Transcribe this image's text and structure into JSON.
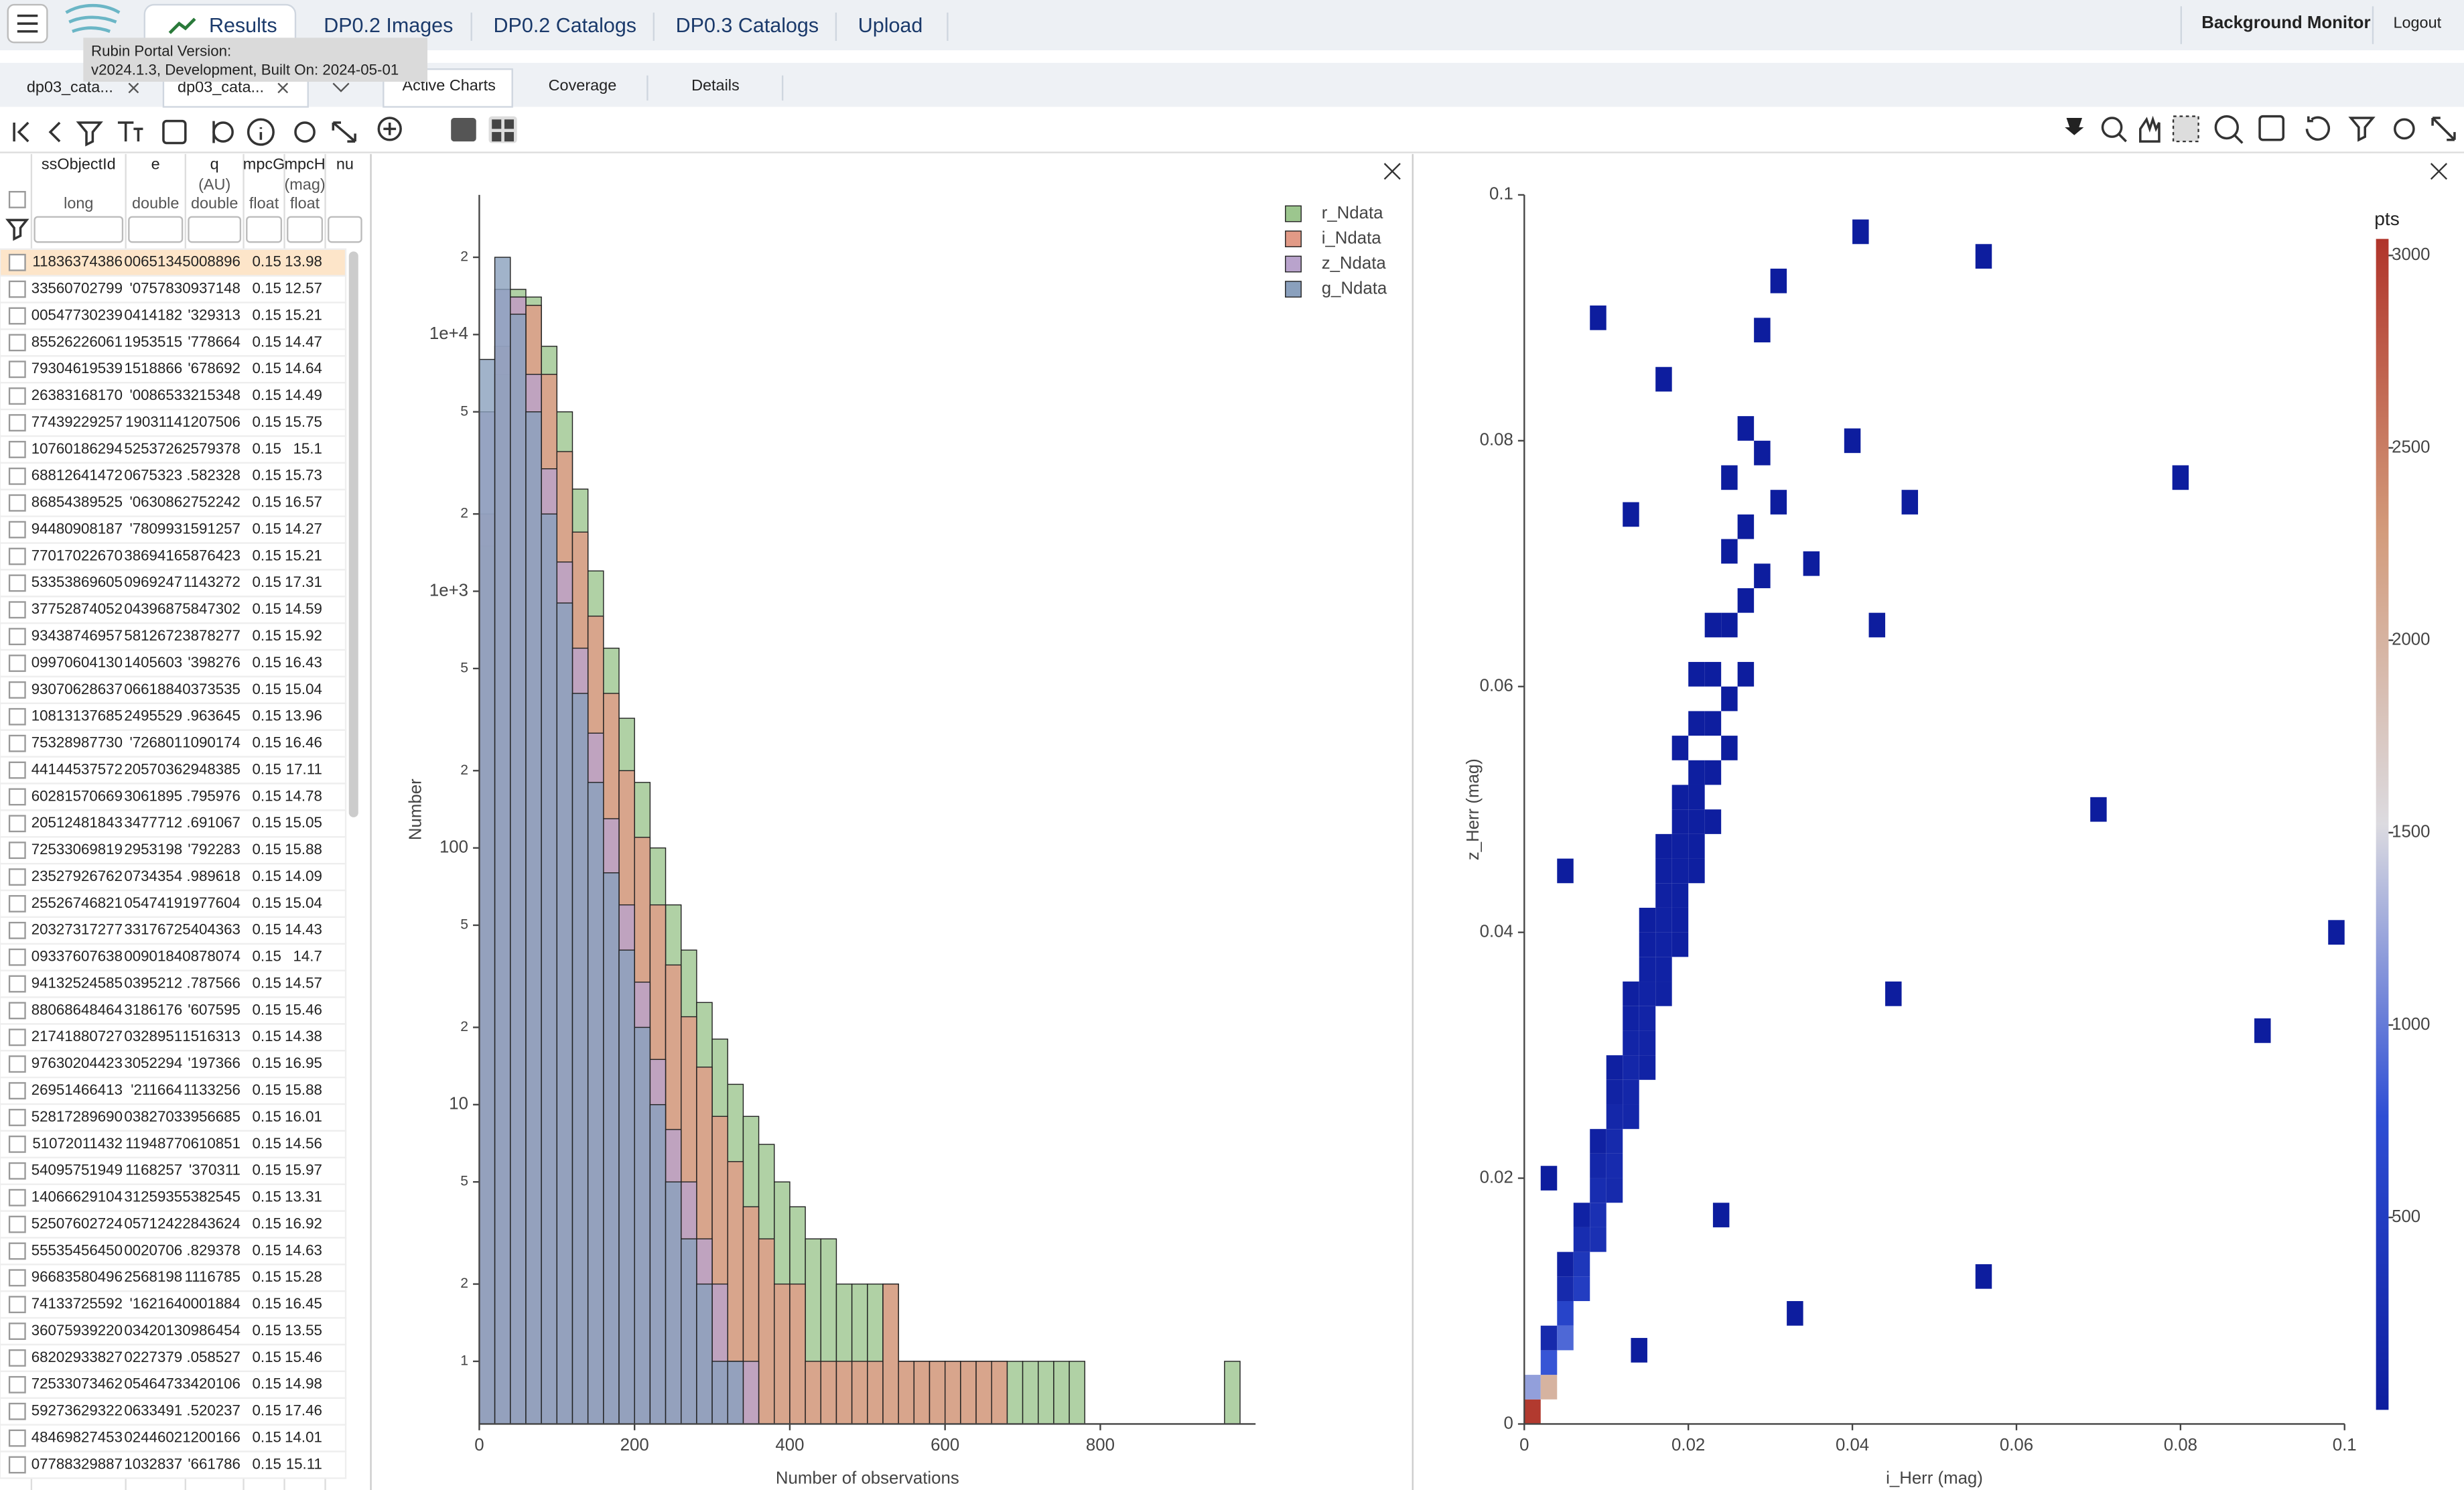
{
  "header": {
    "tabs": [
      "Results",
      "DP0.2 Images",
      "DP0.2 Catalogs",
      "DP0.3 Catalogs",
      "Upload"
    ],
    "right_links": [
      "Background Monitor",
      "Logout"
    ]
  },
  "tooltip": {
    "lines": [
      "Rubin Portal Version:",
      "v2024.1.3, Development, Built On: 2024-05-01"
    ]
  },
  "table_tabs": [
    "dp03_cata...",
    "dp03_cata..."
  ],
  "chart_tabs": [
    "Active Charts",
    "Coverage",
    "Details"
  ],
  "table": {
    "columns": [
      {
        "name": "ssObjectId",
        "type": "long"
      },
      {
        "name": "e",
        "type": "double"
      },
      {
        "name": "q",
        "unit": "(AU)",
        "type": "double"
      },
      {
        "name": "mpcG",
        "type": "float"
      },
      {
        "name": "mpcH",
        "unit": "(mag)",
        "type": "float"
      },
      {
        "name": "nu"
      }
    ],
    "rows": [
      [
        "11836374386",
        "0065134",
        "5008896",
        "0.15",
        "13.98"
      ],
      [
        "33560702799",
        "'075783",
        "0937148",
        "0.15",
        "12.57"
      ],
      [
        "00547730239",
        "0414182",
        "'329313",
        "0.15",
        "15.21"
      ],
      [
        "85526226061",
        "1953515",
        "'778664",
        "0.15",
        "14.47"
      ],
      [
        "79304619539",
        "1518866",
        "'678692",
        "0.15",
        "14.64"
      ],
      [
        "26383168170",
        "'008653",
        "3215348",
        "0.15",
        "14.49"
      ],
      [
        "77439229257",
        "1903114",
        "1207506",
        "0.15",
        "15.75"
      ],
      [
        "10760186294",
        "5253726",
        "2579378",
        "0.15",
        "15.1"
      ],
      [
        "68812641472",
        "0675323",
        ".582328",
        "0.15",
        "15.73"
      ],
      [
        "86854389525",
        "'063086",
        "2752242",
        "0.15",
        "16.57"
      ],
      [
        "94480908187",
        "'780993",
        "1591257",
        "0.15",
        "14.27"
      ],
      [
        "77017022670",
        "3869416",
        "5876423",
        "0.15",
        "15.21"
      ],
      [
        "53353869605",
        "0969247",
        "1143272",
        "0.15",
        "17.31"
      ],
      [
        "37752874052",
        "0439687",
        "5847302",
        "0.15",
        "14.59"
      ],
      [
        "93438746957",
        "5812672",
        "3878277",
        "0.15",
        "15.92"
      ],
      [
        "09970604130",
        "1405603",
        "'398276",
        "0.15",
        "16.43"
      ],
      [
        "93070628637",
        "0661884",
        "0373535",
        "0.15",
        "15.04"
      ],
      [
        "10813137685",
        "2495529",
        ".963645",
        "0.15",
        "13.96"
      ],
      [
        "75328987730",
        "'726801",
        "1090174",
        "0.15",
        "16.46"
      ],
      [
        "44144537572",
        "2057036",
        "2948385",
        "0.15",
        "17.11"
      ],
      [
        "60281570669",
        "3061895",
        ".795976",
        "0.15",
        "14.78"
      ],
      [
        "20512481843",
        "3477712",
        ".691067",
        "0.15",
        "15.05"
      ],
      [
        "72533069819",
        "2953198",
        "'792283",
        "0.15",
        "15.88"
      ],
      [
        "23527926762",
        "0734354",
        ".989618",
        "0.15",
        "14.09"
      ],
      [
        "25526746821",
        "0547419",
        "1977604",
        "0.15",
        "15.04"
      ],
      [
        "20327317277",
        "3317672",
        "5404363",
        "0.15",
        "14.43"
      ],
      [
        "09337607638",
        "0090184",
        "0878074",
        "0.15",
        "14.7"
      ],
      [
        "94132524585",
        "0395212",
        ".787566",
        "0.15",
        "14.57"
      ],
      [
        "88068648464",
        "3186176",
        "'607595",
        "0.15",
        "15.46"
      ],
      [
        "21741880727",
        "0328951",
        "1516313",
        "0.15",
        "14.38"
      ],
      [
        "97630204423",
        "3052294",
        "'197366",
        "0.15",
        "16.95"
      ],
      [
        "26951466413",
        "'211664",
        "1133256",
        "0.15",
        "15.88"
      ],
      [
        "52817289690",
        "0382703",
        "3956685",
        "0.15",
        "16.01"
      ],
      [
        "51072011432",
        "1194877",
        "0610851",
        "0.15",
        "14.56"
      ],
      [
        "54095751949",
        "1168257",
        "'370311",
        "0.15",
        "15.97"
      ],
      [
        "14066629104",
        "3125935",
        "5382545",
        "0.15",
        "13.31"
      ],
      [
        "52507602724",
        "0571242",
        "2843624",
        "0.15",
        "16.92"
      ],
      [
        "55535456450",
        "0020706",
        ".829378",
        "0.15",
        "14.63"
      ],
      [
        "96683580496",
        "2568198",
        "1116785",
        "0.15",
        "15.28"
      ],
      [
        "74133725592",
        "'162164",
        "0001884",
        "0.15",
        "16.45"
      ],
      [
        "36075939220",
        "0342013",
        "0986454",
        "0.15",
        "13.55"
      ],
      [
        "68202933827",
        "0227379",
        ".058527",
        "0.15",
        "15.46"
      ],
      [
        "72533073462",
        "0546473",
        "3420106",
        "0.15",
        "14.98"
      ],
      [
        "59273629322",
        "0633491",
        ".520237",
        "0.15",
        "17.46"
      ],
      [
        "48469827453",
        "0244602",
        "1200166",
        "0.15",
        "14.01"
      ],
      [
        "07788329887",
        "1032837",
        "'661786",
        "0.15",
        "15.11"
      ]
    ]
  },
  "chart_data": [
    {
      "type": "histogram",
      "xlabel": "Number of observations",
      "ylabel": "Number",
      "log_y": true,
      "legend": "upper right",
      "bins": [
        0,
        20,
        40,
        60,
        80,
        100,
        120,
        140,
        160,
        180,
        200,
        220,
        240,
        260,
        280,
        300,
        320,
        340,
        360,
        380,
        400,
        420,
        440,
        460,
        480,
        500,
        520,
        540,
        560,
        580,
        600,
        620,
        640,
        660,
        680,
        700,
        720,
        740,
        760,
        780,
        800,
        820,
        840,
        860,
        880,
        900,
        920,
        940,
        960,
        980,
        1000
      ],
      "xlim": [
        0,
        1000
      ],
      "xticks": [
        0,
        200,
        400,
        600,
        800
      ],
      "ylim": [
        0.57,
        35000
      ],
      "yticks": [
        1,
        2,
        5,
        10,
        {
          "value": 20,
          "label": "2"
        },
        {
          "value": 50,
          "label": "5"
        },
        100,
        {
          "value": 200,
          "label": "2"
        },
        {
          "value": 500,
          "label": "5"
        },
        {
          "value": 1000,
          "label": "1e+3"
        },
        {
          "value": 2000,
          "label": "2"
        },
        {
          "value": 5000,
          "label": "5"
        },
        {
          "value": 10000,
          "label": "1e+4"
        },
        {
          "value": 20000,
          "label": "2"
        }
      ],
      "series": [
        {
          "name": "r_Ndata",
          "color": "#9cc68e",
          "values": [
            1500,
            7000,
            15000,
            14000,
            9000,
            5000,
            2500,
            1200,
            600,
            320,
            180,
            100,
            60,
            40,
            25,
            18,
            12,
            9,
            7,
            5,
            4,
            3,
            3,
            2,
            2,
            2,
            2,
            1,
            1,
            1,
            1,
            1,
            1,
            1,
            1,
            1,
            1,
            1,
            1,
            0,
            0,
            0,
            0,
            0,
            0,
            0,
            0,
            0,
            1,
            0
          ]
        },
        {
          "name": "i_Ndata",
          "color": "#e29a86",
          "values": [
            2000,
            9000,
            14000,
            13000,
            7000,
            3500,
            1700,
            800,
            400,
            200,
            110,
            60,
            35,
            22,
            14,
            9,
            6,
            4,
            3,
            2,
            2,
            1,
            1,
            1,
            1,
            1,
            2,
            1,
            1,
            1,
            1,
            1,
            1,
            1,
            0,
            0,
            0,
            0,
            0,
            0,
            0,
            0,
            0,
            0,
            0,
            0,
            0,
            0,
            0,
            0
          ]
        },
        {
          "name": "z_Ndata",
          "color": "#b9a3cc",
          "values": [
            5000,
            15000,
            14000,
            7000,
            3000,
            1300,
            600,
            280,
            130,
            60,
            30,
            15,
            8,
            5,
            3,
            2,
            1,
            1,
            0,
            0,
            0,
            0,
            0,
            0,
            0,
            0,
            0,
            0,
            0,
            0,
            0,
            0,
            0,
            0,
            0,
            0,
            0,
            0,
            0,
            0,
            0,
            0,
            0,
            0,
            0,
            0,
            0,
            0,
            0,
            0
          ]
        },
        {
          "name": "g_Ndata",
          "color": "#8aa0bd",
          "values": [
            8000,
            20000,
            12000,
            5000,
            2000,
            900,
            400,
            180,
            80,
            40,
            20,
            10,
            5,
            3,
            2,
            1,
            1,
            0,
            0,
            0,
            0,
            0,
            0,
            0,
            0,
            0,
            0,
            0,
            0,
            0,
            0,
            0,
            0,
            0,
            0,
            0,
            0,
            0,
            0,
            0,
            0,
            0,
            0,
            0,
            0,
            0,
            0,
            0,
            0,
            0
          ]
        }
      ]
    },
    {
      "type": "heatmap",
      "xlabel": "i_Herr (mag)",
      "ylabel": "z_Herr (mag)",
      "xlim": [
        0,
        0.1
      ],
      "ylim": [
        0,
        0.1
      ],
      "xticks": [
        0,
        0.02,
        0.04,
        0.06,
        0.08,
        0.1
      ],
      "yticks": [
        0,
        0.02,
        0.04,
        0.06,
        0.08,
        0.1
      ],
      "cell_size": 0.002,
      "x": [
        0.001,
        0.001,
        0.003,
        0.003,
        0.003,
        0.005,
        0.005,
        0.005,
        0.005,
        0.007,
        0.007,
        0.007,
        0.007,
        0.009,
        0.009,
        0.009,
        0.009,
        0.009,
        0.011,
        0.011,
        0.011,
        0.011,
        0.011,
        0.011,
        0.013,
        0.013,
        0.013,
        0.013,
        0.013,
        0.013,
        0.015,
        0.015,
        0.015,
        0.015,
        0.015,
        0.015,
        0.015,
        0.017,
        0.017,
        0.017,
        0.017,
        0.017,
        0.017,
        0.017,
        0.019,
        0.019,
        0.019,
        0.019,
        0.019,
        0.019,
        0.019,
        0.019,
        0.021,
        0.021,
        0.021,
        0.021,
        0.021,
        0.021,
        0.021,
        0.023,
        0.023,
        0.023,
        0.023,
        0.023,
        0.025,
        0.025,
        0.025,
        0.025,
        0.025,
        0.027,
        0.027,
        0.027,
        0.027,
        0.029,
        0.029,
        0.029,
        0.031,
        0.031,
        0.017,
        0.013,
        0.009,
        0.005,
        0.035,
        0.043,
        0.047,
        0.04,
        0.056,
        0.07,
        0.08,
        0.099,
        0.09,
        0.045,
        0.056,
        0.033,
        0.024,
        0.014,
        0.003,
        0.041
      ],
      "y": [
        0.001,
        0.003,
        0.003,
        0.005,
        0.007,
        0.007,
        0.009,
        0.011,
        0.013,
        0.011,
        0.013,
        0.015,
        0.017,
        0.015,
        0.017,
        0.019,
        0.021,
        0.023,
        0.019,
        0.021,
        0.023,
        0.025,
        0.027,
        0.029,
        0.025,
        0.027,
        0.029,
        0.031,
        0.033,
        0.035,
        0.029,
        0.031,
        0.033,
        0.035,
        0.037,
        0.039,
        0.041,
        0.035,
        0.037,
        0.039,
        0.041,
        0.043,
        0.045,
        0.047,
        0.039,
        0.041,
        0.043,
        0.045,
        0.047,
        0.049,
        0.051,
        0.055,
        0.045,
        0.047,
        0.049,
        0.051,
        0.053,
        0.057,
        0.061,
        0.049,
        0.053,
        0.057,
        0.061,
        0.065,
        0.055,
        0.059,
        0.065,
        0.071,
        0.077,
        0.061,
        0.067,
        0.073,
        0.081,
        0.069,
        0.079,
        0.089,
        0.075,
        0.093,
        0.085,
        0.074,
        0.09,
        0.045,
        0.07,
        0.065,
        0.075,
        0.08,
        0.095,
        0.05,
        0.077,
        0.04,
        0.032,
        0.035,
        0.012,
        0.009,
        0.017,
        0.006,
        0.02,
        0.097
      ],
      "values": [
        3000,
        1200,
        2000,
        800,
        200,
        900,
        600,
        200,
        60,
        500,
        400,
        250,
        80,
        300,
        300,
        250,
        150,
        60,
        200,
        220,
        200,
        150,
        90,
        40,
        150,
        160,
        150,
        120,
        80,
        40,
        100,
        110,
        110,
        100,
        80,
        50,
        30,
        70,
        80,
        80,
        70,
        60,
        40,
        20,
        40,
        50,
        55,
        50,
        45,
        35,
        25,
        15,
        25,
        30,
        30,
        30,
        25,
        15,
        10,
        12,
        15,
        12,
        8,
        5,
        6,
        6,
        4,
        3,
        2,
        3,
        2,
        2,
        1,
        2,
        1,
        1,
        1,
        1,
        1,
        1,
        1,
        1,
        1,
        1,
        1,
        1,
        1,
        1,
        1,
        1,
        1,
        1,
        1,
        1,
        1,
        1,
        1,
        1
      ],
      "colorbar": {
        "title": "pts",
        "lim": [
          0,
          3043
        ],
        "ticks": [
          500,
          1000,
          1500,
          2000,
          2500,
          3000
        ],
        "colors": [
          "#0d1d9e",
          "#2e4ed4",
          "#dcdbe0",
          "#d39b7b",
          "#b0342a"
        ]
      }
    }
  ]
}
